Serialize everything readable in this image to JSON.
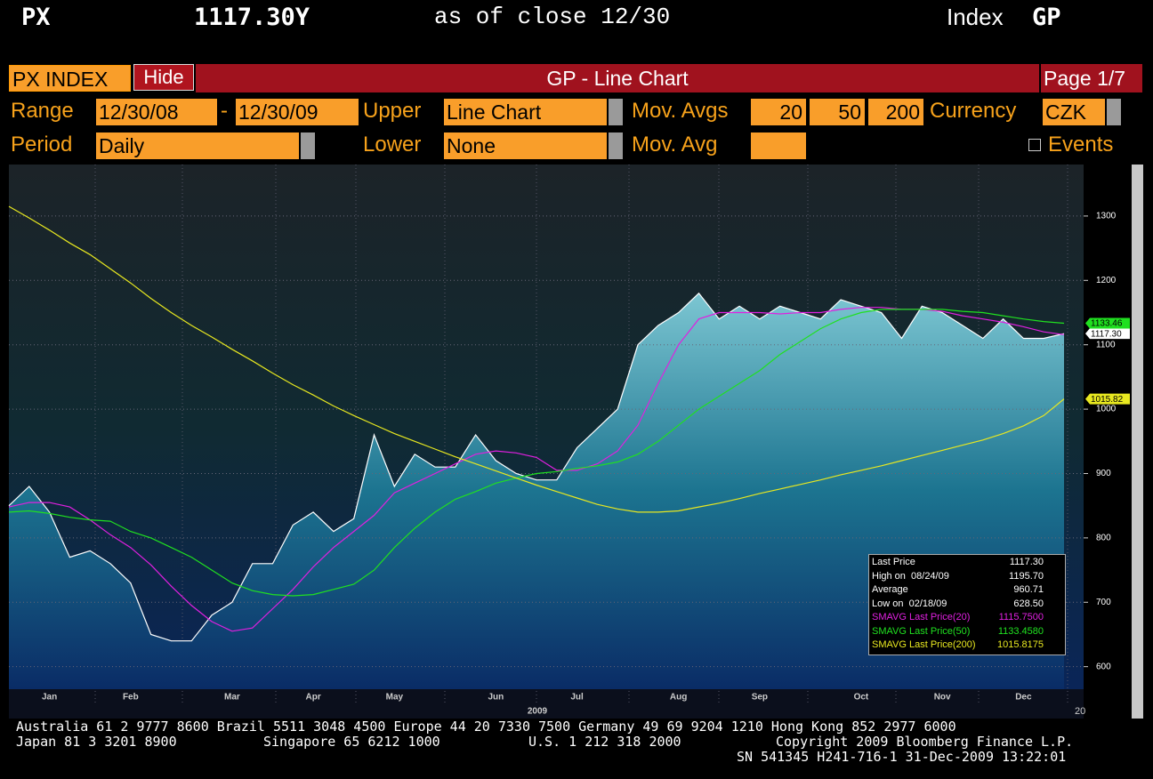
{
  "header": {
    "ticker": "PX",
    "price": "1117.30Y",
    "asof": "as of close 12/30",
    "kind": "Index",
    "code": "GP"
  },
  "toolbar": {
    "security": "PX INDEX",
    "hide": "Hide",
    "title": "GP - Line Chart",
    "page": "Page 1/7"
  },
  "controls": {
    "range_label": "Range",
    "range_from": "12/30/08",
    "range_sep": "-",
    "range_to": "12/30/09",
    "upper_label": "Upper",
    "upper": "Line Chart",
    "movavgs_label": "Mov. Avgs",
    "movavgs": [
      "20",
      "50",
      "200"
    ],
    "currency_label": "Currency",
    "currency": "CZK",
    "period_label": "Period",
    "period": "Daily",
    "lower_label": "Lower",
    "lower": "None",
    "movavg_label": "Mov. Avg",
    "events": "Events"
  },
  "chart_data": {
    "type": "line",
    "xlabel": "2009",
    "categories": [
      null,
      null,
      "Jan",
      null,
      null,
      null,
      "Feb",
      null,
      null,
      null,
      null,
      "Mar",
      null,
      null,
      null,
      "Apr",
      null,
      null,
      null,
      "May",
      null,
      null,
      null,
      null,
      "Jun",
      null,
      null,
      null,
      "Jul",
      null,
      null,
      null,
      null,
      "Aug",
      null,
      null,
      null,
      "Sep",
      null,
      null,
      null,
      null,
      "Oct",
      null,
      null,
      null,
      "Nov",
      null,
      null,
      null,
      "Dec",
      null,
      null
    ],
    "ylim": [
      565,
      1380
    ],
    "yticks": [
      600,
      700,
      800,
      900,
      1000,
      1100,
      1200,
      1300
    ],
    "grid": true,
    "series": [
      {
        "name": "Last Price",
        "color": "#ffffff",
        "fill": true,
        "last_label": "1117.30",
        "values": [
          850,
          880,
          840,
          770,
          780,
          760,
          730,
          650,
          640,
          640,
          680,
          700,
          760,
          760,
          820,
          840,
          810,
          830,
          960,
          880,
          930,
          910,
          910,
          960,
          920,
          900,
          890,
          890,
          940,
          970,
          1000,
          1100,
          1130,
          1150,
          1180,
          1140,
          1160,
          1140,
          1160,
          1150,
          1140,
          1170,
          1160,
          1150,
          1110,
          1160,
          1150,
          1130,
          1110,
          1140,
          1110,
          1110,
          1117.3
        ]
      },
      {
        "name": "SMAVG Last Price(20)",
        "color": "#e020e0",
        "values": [
          848,
          855,
          855,
          848,
          828,
          805,
          785,
          758,
          725,
          695,
          670,
          655,
          660,
          690,
          720,
          755,
          785,
          810,
          835,
          870,
          885,
          900,
          915,
          930,
          935,
          932,
          925,
          905,
          905,
          915,
          935,
          975,
          1040,
          1100,
          1140,
          1150,
          1150,
          1150,
          1148,
          1150,
          1150,
          1155,
          1158,
          1158,
          1155,
          1155,
          1152,
          1145,
          1140,
          1135,
          1128,
          1120,
          1115.75
        ]
      },
      {
        "name": "SMAVG Last Price(50)",
        "color": "#20e020",
        "last_label": "1133.46",
        "values": [
          840,
          842,
          838,
          832,
          828,
          826,
          810,
          800,
          785,
          770,
          750,
          730,
          718,
          712,
          710,
          712,
          720,
          728,
          750,
          785,
          815,
          840,
          860,
          872,
          885,
          893,
          900,
          903,
          908,
          912,
          918,
          930,
          950,
          975,
          1000,
          1020,
          1040,
          1060,
          1085,
          1105,
          1125,
          1140,
          1150,
          1155,
          1155,
          1155,
          1155,
          1152,
          1150,
          1145,
          1140,
          1136,
          1133.458
        ]
      },
      {
        "name": "SMAVG Last Price(200)",
        "color": "#e8e820",
        "last_label": "1015.82",
        "values": [
          1315,
          1297,
          1278,
          1258,
          1240,
          1218,
          1196,
          1172,
          1150,
          1130,
          1112,
          1093,
          1075,
          1056,
          1038,
          1022,
          1005,
          990,
          976,
          962,
          950,
          938,
          926,
          915,
          904,
          893,
          882,
          872,
          862,
          852,
          845,
          840,
          840,
          842,
          848,
          854,
          861,
          869,
          876,
          883,
          890,
          898,
          905,
          912,
          920,
          928,
          936,
          944,
          952,
          962,
          974,
          990,
          1015.8175
        ]
      }
    ]
  },
  "stats": {
    "rows": [
      {
        "label": "Last Price",
        "value": "1117.30"
      },
      {
        "label": "High on  08/24/09",
        "value": "1195.70"
      },
      {
        "label": "Average",
        "value": "960.71"
      },
      {
        "label": "Low on  02/18/09",
        "value": "628.50"
      }
    ],
    "sma_values": [
      "1115.7500",
      "1133.4580",
      "1015.8175"
    ]
  },
  "footer": {
    "line1": "Australia 61 2 9777 8600 Brazil 5511 3048 4500 Europe 44 20 7330 7500 Germany 49 69 9204 1210 Hong Kong 852 2977 6000",
    "line2a": "Japan 81 3 3201 8900",
    "line2b": "Singapore 65 6212 1000",
    "line2c": "U.S. 1 212 318 2000",
    "line2d": "Copyright 2009 Bloomberg Finance L.P.",
    "line3": "SN 541345 H241-716-1 31-Dec-2009 13:22:01"
  }
}
